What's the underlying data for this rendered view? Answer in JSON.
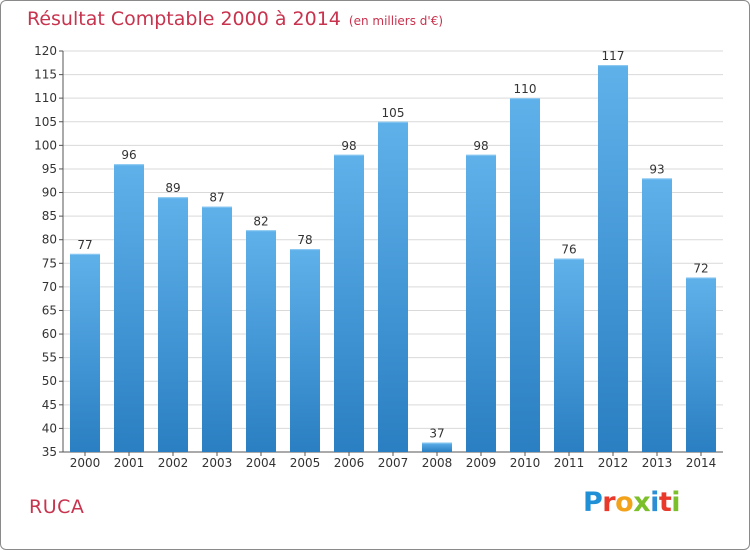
{
  "colors": {
    "accent": "#c8334e",
    "bar": "#3b95d8",
    "grid": "#d9d9d9"
  },
  "header": {
    "title": "Résultat Comptable 2000 à 2014",
    "unit": "(en milliers d'€)"
  },
  "footer": {
    "commune": "RUCA",
    "logo_letters": [
      "P",
      "r",
      "o",
      "x",
      "i",
      "t",
      "i"
    ],
    "logo_colors": [
      "#1f8fd6",
      "#e8392b",
      "#f2a31b",
      "#7bbf2a",
      "#2c8fd6",
      "#e8392b",
      "#7bbf2a"
    ]
  },
  "chart_data": {
    "type": "bar",
    "title": "Résultat Comptable 2000 à 2014",
    "subtitle": "(en milliers d'€)",
    "xlabel": "",
    "ylabel": "",
    "categories": [
      "2000",
      "2001",
      "2002",
      "2003",
      "2004",
      "2005",
      "2006",
      "2007",
      "2008",
      "2009",
      "2010",
      "2011",
      "2012",
      "2013",
      "2014"
    ],
    "values": [
      77,
      96,
      89,
      87,
      82,
      78,
      98,
      105,
      37,
      98,
      110,
      76,
      117,
      93,
      72
    ],
    "ylim": [
      35,
      120
    ],
    "yticks": [
      35,
      40,
      45,
      50,
      55,
      60,
      65,
      70,
      75,
      80,
      85,
      90,
      95,
      100,
      105,
      110,
      115,
      120
    ],
    "grid": true,
    "legend": "none"
  }
}
